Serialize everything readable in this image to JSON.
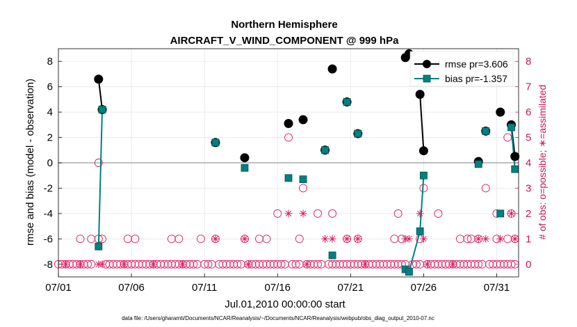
{
  "chart_data": {
    "type": "scatter",
    "title": "Northern Hemisphere",
    "subtitle": "AIRCRAFT_V_WIND_COMPONENT @ 999 hPa",
    "xlabel": "Jul.01,2010 00:00:00 start",
    "ylabel": "rmse and bias (model - observation)",
    "y2label": "# of obs: o=possible; ∗=assimilated",
    "footer": "data file: /Users/gharamti/Documents/NCAR/Reanalysis/~/Documents/NCAR/Reanalysis/webpub/obs_diag_output_2010-07.nc",
    "xlim": [
      1,
      32.5
    ],
    "ylim": [
      -9,
      9
    ],
    "y2lim": [
      -0.5,
      8.5
    ],
    "xticks": [
      1,
      6,
      11,
      16,
      21,
      26,
      31
    ],
    "xtick_labels": [
      "07/01",
      "07/06",
      "07/11",
      "07/16",
      "07/21",
      "07/26",
      "07/31"
    ],
    "yticks": [
      -8,
      -6,
      -4,
      -2,
      0,
      2,
      4,
      6,
      8
    ],
    "ytick_labels": [
      "-8",
      "-6",
      "-4",
      "-2",
      "0",
      "2",
      "4",
      "6",
      "8"
    ],
    "y2ticks": [
      0,
      1,
      2,
      3,
      4,
      5,
      6,
      7,
      8
    ],
    "y2tick_labels": [
      "0",
      "1",
      "2",
      "3",
      "4",
      "5",
      "6",
      "7",
      "8"
    ],
    "grid": true,
    "legend_position": "top-right",
    "colors": {
      "rmse": "#000000",
      "bias": "#008080",
      "obs": "#D81B60",
      "zero_line": "#aaaaaa"
    },
    "series": [
      {
        "name": "rmse pr=3.606",
        "marker": "circle",
        "points": [
          [
            3.75,
            6.6
          ],
          [
            4.0,
            4.2
          ],
          [
            11.75,
            1.6
          ],
          [
            13.75,
            0.4
          ],
          [
            16.75,
            3.1
          ],
          [
            17.75,
            3.4
          ],
          [
            19.25,
            1.0
          ],
          [
            19.75,
            7.4
          ],
          [
            20.75,
            4.8
          ],
          [
            21.5,
            2.3
          ],
          [
            24.75,
            8.3
          ],
          [
            25.0,
            8.6
          ],
          [
            25.75,
            5.4
          ],
          [
            26.0,
            0.95
          ],
          [
            29.75,
            0.1
          ],
          [
            30.25,
            2.5
          ],
          [
            31.25,
            4.0
          ],
          [
            32.0,
            3.0
          ],
          [
            32.25,
            0.5
          ]
        ],
        "segments": [
          [
            [
              3.75,
              6.6
            ],
            [
              4.0,
              4.2
            ]
          ],
          [
            [
              24.75,
              8.3
            ],
            [
              25.0,
              8.6
            ]
          ],
          [
            [
              25.75,
              5.4
            ],
            [
              26.0,
              0.95
            ]
          ],
          [
            [
              32.0,
              3.0
            ],
            [
              32.25,
              0.5
            ]
          ]
        ]
      },
      {
        "name": "bias pr=-1.357",
        "marker": "square",
        "points": [
          [
            3.75,
            -6.6
          ],
          [
            4.0,
            4.2
          ],
          [
            11.75,
            1.6
          ],
          [
            13.75,
            -0.4
          ],
          [
            16.75,
            -1.2
          ],
          [
            17.75,
            -1.3
          ],
          [
            19.25,
            1.0
          ],
          [
            19.75,
            -7.3
          ],
          [
            20.75,
            4.8
          ],
          [
            21.5,
            2.3
          ],
          [
            24.75,
            -8.4
          ],
          [
            25.0,
            -8.6
          ],
          [
            25.75,
            -5.4
          ],
          [
            26.0,
            -1.0
          ],
          [
            29.75,
            -0.1
          ],
          [
            30.25,
            2.5
          ],
          [
            31.25,
            -4.0
          ],
          [
            32.0,
            2.8
          ],
          [
            32.25,
            -0.5
          ]
        ],
        "segments": [
          [
            [
              3.75,
              -6.6
            ],
            [
              4.0,
              4.2
            ]
          ],
          [
            [
              24.75,
              -8.4
            ],
            [
              25.0,
              -8.6
            ],
            [
              25.75,
              -5.4
            ],
            [
              26.0,
              -1.0
            ]
          ],
          [
            [
              32.0,
              2.8
            ],
            [
              32.25,
              -0.5
            ]
          ]
        ]
      }
    ],
    "obs_possible": {
      "name": "possible",
      "marker": "open-circle",
      "points": [
        [
          1,
          0
        ],
        [
          1.25,
          0
        ],
        [
          1.5,
          0
        ],
        [
          1.75,
          0
        ],
        [
          2,
          0
        ],
        [
          2.25,
          0
        ],
        [
          2.5,
          0
        ],
        [
          2.75,
          0
        ],
        [
          3,
          0
        ],
        [
          3.25,
          0
        ],
        [
          2.5,
          1
        ],
        [
          3.25,
          1
        ],
        [
          3.75,
          1
        ],
        [
          3.75,
          4
        ],
        [
          4.0,
          1
        ],
        [
          4.25,
          0
        ],
        [
          4.5,
          0
        ],
        [
          4.75,
          0
        ],
        [
          5,
          0
        ],
        [
          5.25,
          0
        ],
        [
          5.5,
          0
        ],
        [
          5.75,
          0
        ],
        [
          6,
          0
        ],
        [
          5.75,
          1
        ],
        [
          6.25,
          1
        ],
        [
          6.25,
          0
        ],
        [
          6.5,
          0
        ],
        [
          6.75,
          0
        ],
        [
          7,
          0
        ],
        [
          7.25,
          0
        ],
        [
          7.5,
          0
        ],
        [
          7.75,
          0
        ],
        [
          8,
          0
        ],
        [
          8.25,
          0
        ],
        [
          8.5,
          0
        ],
        [
          8.75,
          0
        ],
        [
          9,
          0
        ],
        [
          8.75,
          1
        ],
        [
          9.25,
          1
        ],
        [
          9.25,
          0
        ],
        [
          9.5,
          0
        ],
        [
          9.75,
          0
        ],
        [
          10,
          0
        ],
        [
          10.25,
          0
        ],
        [
          10.5,
          0
        ],
        [
          11,
          0
        ],
        [
          11.25,
          0
        ],
        [
          10.75,
          1
        ],
        [
          11.75,
          1
        ],
        [
          11.5,
          0
        ],
        [
          12,
          0
        ],
        [
          12.25,
          0
        ],
        [
          12.5,
          0
        ],
        [
          12.75,
          0
        ],
        [
          13,
          0
        ],
        [
          13.25,
          0
        ],
        [
          13.5,
          0
        ],
        [
          13.75,
          1
        ],
        [
          14,
          0
        ],
        [
          14.25,
          0
        ],
        [
          14.5,
          0
        ],
        [
          14.75,
          0
        ],
        [
          15,
          0
        ],
        [
          14.75,
          1
        ],
        [
          15.25,
          1
        ],
        [
          15.25,
          0
        ],
        [
          15.5,
          0
        ],
        [
          15.75,
          0
        ],
        [
          16,
          0
        ],
        [
          16.25,
          0
        ],
        [
          16.0,
          2
        ],
        [
          16.75,
          5
        ],
        [
          16.5,
          0
        ],
        [
          17,
          0
        ],
        [
          17.25,
          0
        ],
        [
          17.5,
          0
        ],
        [
          17.75,
          3
        ],
        [
          17.5,
          1
        ],
        [
          18.0,
          0
        ],
        [
          18.25,
          0
        ],
        [
          18.5,
          0
        ],
        [
          18.75,
          0
        ],
        [
          19,
          0
        ],
        [
          18.75,
          2
        ],
        [
          19.75,
          2
        ],
        [
          19.5,
          0
        ],
        [
          19.75,
          0
        ],
        [
          20,
          0
        ],
        [
          20.25,
          0
        ],
        [
          20.5,
          0
        ],
        [
          20.75,
          1
        ],
        [
          20.75,
          0
        ],
        [
          21,
          0
        ],
        [
          21.25,
          0
        ],
        [
          21.5,
          1
        ],
        [
          21.5,
          0
        ],
        [
          21.75,
          0
        ],
        [
          22,
          0
        ],
        [
          22.25,
          0
        ],
        [
          22.5,
          0
        ],
        [
          22.75,
          0
        ],
        [
          23,
          0
        ],
        [
          23.25,
          0
        ],
        [
          23.5,
          0
        ],
        [
          23.75,
          0
        ],
        [
          24,
          0
        ],
        [
          24.25,
          0
        ],
        [
          24.0,
          1
        ],
        [
          24.5,
          1
        ],
        [
          24.25,
          2
        ],
        [
          24.5,
          0
        ],
        [
          24.75,
          0
        ],
        [
          25.25,
          0
        ],
        [
          25.5,
          0
        ],
        [
          25.75,
          0
        ],
        [
          26.0,
          3
        ],
        [
          25.75,
          1
        ],
        [
          26.25,
          0
        ],
        [
          26.5,
          0
        ],
        [
          26.75,
          0
        ],
        [
          27,
          0
        ],
        [
          27.25,
          0
        ],
        [
          27.0,
          2
        ],
        [
          27.5,
          0
        ],
        [
          27.75,
          0
        ],
        [
          28,
          0
        ],
        [
          28.25,
          0
        ],
        [
          28.5,
          0
        ],
        [
          28.75,
          0
        ],
        [
          28.5,
          1
        ],
        [
          29.0,
          1
        ],
        [
          29.25,
          1
        ],
        [
          29,
          0
        ],
        [
          29.25,
          0
        ],
        [
          29.5,
          0
        ],
        [
          29.75,
          1
        ],
        [
          29.75,
          0
        ],
        [
          30.0,
          0
        ],
        [
          30.25,
          3
        ],
        [
          30.5,
          0
        ],
        [
          30.75,
          0
        ],
        [
          31,
          0
        ],
        [
          31.0,
          1
        ],
        [
          31.25,
          0
        ],
        [
          31.5,
          0
        ],
        [
          31.75,
          0
        ],
        [
          31.75,
          1
        ],
        [
          31.0,
          2
        ],
        [
          32.0,
          2
        ],
        [
          32.0,
          0
        ],
        [
          32.25,
          0
        ],
        [
          32.25,
          1
        ],
        [
          31.75,
          5
        ]
      ]
    },
    "obs_assimilated": {
      "name": "assimilated",
      "marker": "asterisk",
      "points": [
        [
          1.5,
          0
        ],
        [
          2.5,
          0
        ],
        [
          3.75,
          0
        ],
        [
          4.0,
          0
        ],
        [
          5.5,
          0
        ],
        [
          7.5,
          0
        ],
        [
          9.5,
          0
        ],
        [
          11.75,
          1
        ],
        [
          13.75,
          1
        ],
        [
          14.0,
          0
        ],
        [
          16.75,
          2
        ],
        [
          17.75,
          2
        ],
        [
          18.0,
          0
        ],
        [
          19.25,
          1
        ],
        [
          19.75,
          1
        ],
        [
          20.75,
          1
        ],
        [
          21.5,
          1
        ],
        [
          22.0,
          0
        ],
        [
          24.75,
          1
        ],
        [
          25.0,
          1
        ],
        [
          25.75,
          2
        ],
        [
          26.0,
          1
        ],
        [
          29.75,
          1
        ],
        [
          30.25,
          1
        ],
        [
          31.25,
          2
        ],
        [
          31.25,
          1
        ],
        [
          32.0,
          2
        ],
        [
          32.25,
          1
        ],
        [
          26.25,
          0
        ],
        [
          28.0,
          0
        ]
      ]
    }
  }
}
